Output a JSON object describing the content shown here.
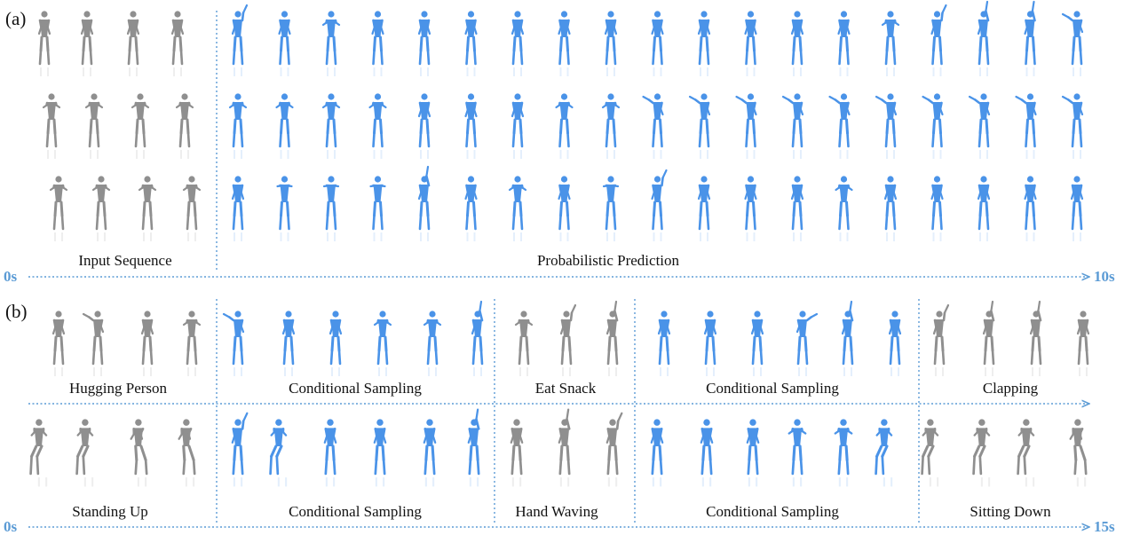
{
  "panels": {
    "a": "(a)",
    "b": "(b)"
  },
  "panel_a": {
    "input_label": "Input Sequence",
    "prediction_label": "Probabilistic Prediction",
    "time_start": "0s",
    "time_end": "10s"
  },
  "panel_b": {
    "row1": [
      "Hugging Person",
      "Conditional Sampling",
      "Eat Snack",
      "Conditional Sampling",
      "Clapping"
    ],
    "row2": [
      "Standing Up",
      "Conditional Sampling",
      "Hand Waving",
      "Conditional Sampling",
      "Sitting Down"
    ],
    "time_start": "0s",
    "time_end": "15s"
  },
  "colors": {
    "observed": "#8f8f8f",
    "predicted": "#4a93e8",
    "timeline": "#5b9bd5",
    "text": "#111111"
  }
}
